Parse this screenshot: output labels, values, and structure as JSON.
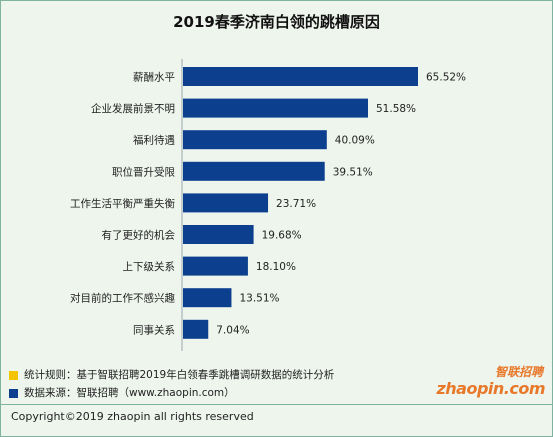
{
  "title": "2019春季济南白领的跳槽原因",
  "chart_data": {
    "type": "bar",
    "orientation": "horizontal",
    "title": "2019春季济南白领的跳槽原因",
    "categories": [
      "薪酬水平",
      "企业发展前景不明",
      "福利待遇",
      "职位晋升受限",
      "工作生活平衡严重失衡",
      "有了更好的机会",
      "上下级关系",
      "对目前的工作不感兴趣",
      "同事关系"
    ],
    "values": [
      65.52,
      51.58,
      40.09,
      39.51,
      23.71,
      19.68,
      18.1,
      13.51,
      7.04
    ],
    "value_labels": [
      "65.52%",
      "51.58%",
      "40.09%",
      "39.51%",
      "23.71%",
      "19.68%",
      "18.10%",
      "13.51%",
      "7.04%"
    ],
    "xlim": [
      0,
      70
    ],
    "grid": false,
    "bar_color": "#0d3f8f"
  },
  "legend": {
    "items": [
      {
        "text": "统计规则：基于智联招聘2019年白领春季跳槽调研数据的统计分析",
        "color": "#f5c400"
      },
      {
        "text": "数据来源：智联招聘（www.zhaopin.com）",
        "color": "#0d3f8f"
      }
    ]
  },
  "logo": {
    "cn": "智联招聘",
    "en": "zhaopin.com"
  },
  "copyright": "Copyright©2019 zhaopin all rights reserved"
}
